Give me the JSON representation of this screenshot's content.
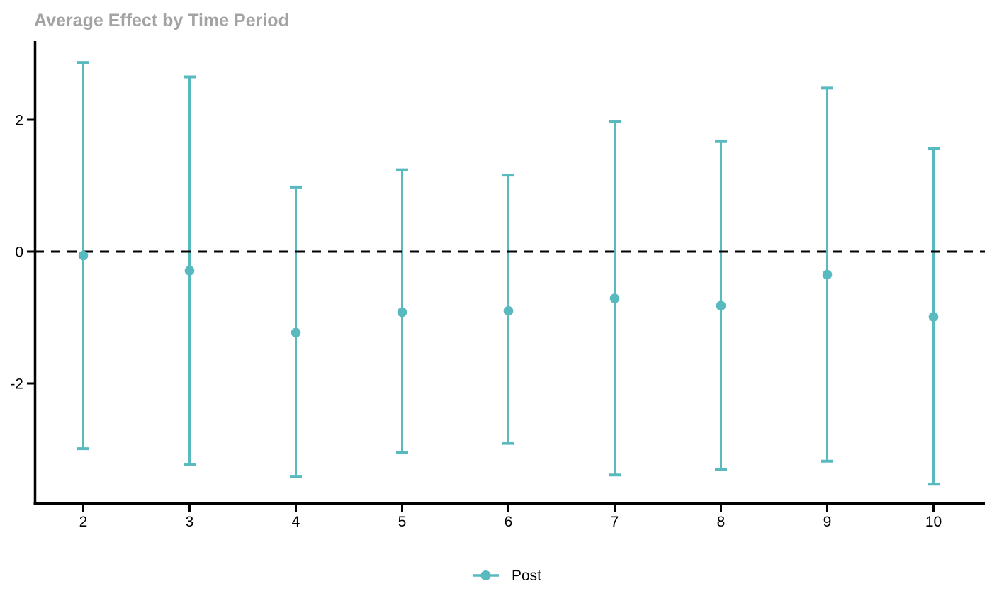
{
  "title": "Average Effect by Time Period",
  "legend": {
    "position": "bottom-center",
    "items": [
      {
        "label": "Post",
        "marker": "point-with-line"
      }
    ]
  },
  "colors": {
    "series": "#58b9bf",
    "zero_line": "#000000",
    "axis": "#000000",
    "title": "#a3a3a3",
    "background": "#ffffff"
  },
  "chart_data": {
    "type": "errorbar",
    "title": "Average Effect by Time Period",
    "xlabel": "",
    "ylabel": "",
    "x": [
      2,
      3,
      4,
      5,
      6,
      7,
      8,
      9,
      10
    ],
    "x_tick_labels": [
      "2",
      "3",
      "4",
      "5",
      "6",
      "7",
      "8",
      "9",
      "10"
    ],
    "y_tick_values": [
      2,
      0,
      -2
    ],
    "y_tick_labels": [
      "2",
      "0",
      "-2"
    ],
    "ylim": [
      -3.8,
      3.2
    ],
    "grid": false,
    "zero_line": true,
    "legend_position": "bottom",
    "series": [
      {
        "name": "Post",
        "estimates": [
          -0.06,
          -0.29,
          -1.23,
          -0.92,
          -0.9,
          -0.71,
          -0.82,
          -0.35,
          -0.99
        ],
        "ci_low": [
          -2.99,
          -3.23,
          -3.41,
          -3.05,
          -2.91,
          -3.39,
          -3.31,
          -3.18,
          -3.53
        ],
        "ci_high": [
          2.87,
          2.65,
          0.98,
          1.24,
          1.16,
          1.97,
          1.67,
          2.48,
          1.57
        ]
      }
    ]
  }
}
